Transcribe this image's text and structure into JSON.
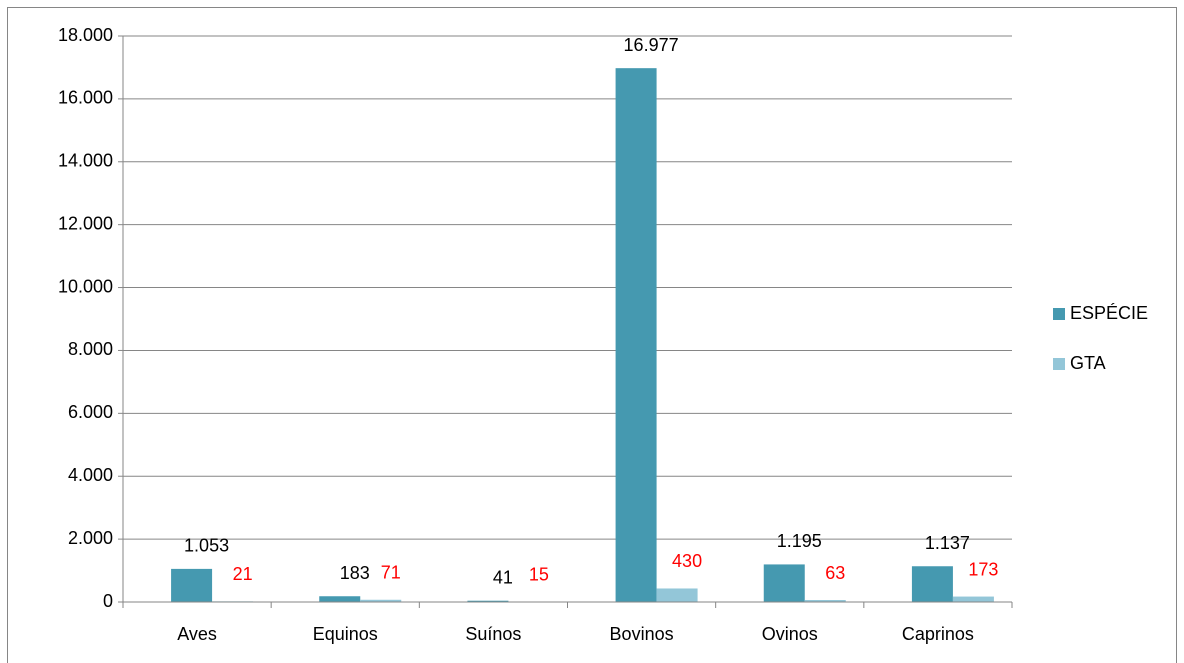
{
  "chart_data": {
    "type": "bar",
    "categories": [
      "Aves",
      "Equinos",
      "Suínos",
      "Bovinos",
      "Ovinos",
      "Caprinos"
    ],
    "series": [
      {
        "name": "ESPÉCIE",
        "color": "#4599b0",
        "label_color": "#000000",
        "values": [
          1053,
          183,
          41,
          16977,
          1195,
          1137
        ],
        "value_labels": [
          "1.053",
          "183",
          "41",
          "16.977",
          "1.195",
          "1.137"
        ]
      },
      {
        "name": "GTA",
        "color": "#93c6d8",
        "label_color": "#ff0000",
        "values": [
          21,
          71,
          15,
          430,
          63,
          173
        ]
      }
    ],
    "ylim": [
      0,
      18000
    ],
    "yticks": [
      0,
      {
        "value": 2000,
        "label": "2.000"
      },
      {
        "value": 4000,
        "label": "4.000"
      },
      {
        "value": 6000,
        "label": "6.000"
      },
      {
        "value": 8000,
        "label": "8.000"
      },
      {
        "value": 10000,
        "label": "10.000"
      },
      {
        "value": 12000,
        "label": "12.000"
      },
      {
        "value": 14000,
        "label": "14.000"
      },
      {
        "value": 16000,
        "label": "16.000"
      },
      {
        "value": 18000,
        "label": "18.000"
      }
    ],
    "grid": true,
    "legend": "right"
  }
}
